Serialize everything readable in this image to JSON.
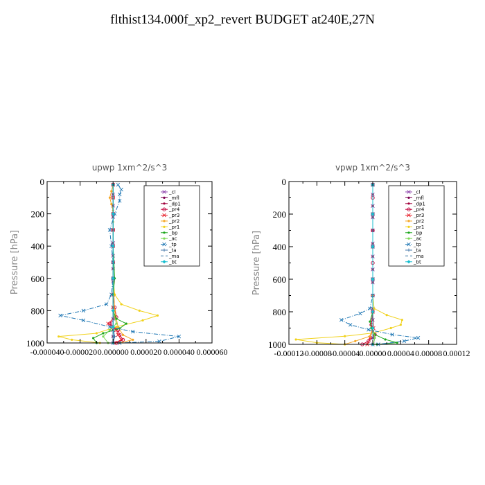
{
  "page": {
    "title": "flthist134.000f_xp2_revert  BUDGET at240E,27N"
  },
  "chart_data": [
    {
      "type": "line",
      "title": "upwp   1xm^2/s^3",
      "xlabel": "",
      "ylabel": "Pressure [hPa]",
      "ylim": [
        1000,
        0
      ],
      "xlim": [
        -4e-05,
        6e-05
      ],
      "y_ticks": [
        0,
        200,
        400,
        600,
        800,
        1000
      ],
      "y_tick_labels": [
        "0",
        "200",
        "400",
        "600",
        "800",
        "1000"
      ],
      "x_ticks": [
        -4e-05,
        -2e-05,
        0.0,
        2e-05,
        4e-05,
        6e-05
      ],
      "x_tick_labels": [
        "-0.000040",
        "-0.000020",
        "0.000000",
        "0.000020",
        "0.000040",
        "0.000060"
      ],
      "legend_position": "top-right",
      "series": [
        {
          "name": "_cl",
          "color": "#8e44ad",
          "marker": "x",
          "dash": "solid",
          "pressure": [
            20,
            80,
            150,
            220,
            300,
            380,
            460,
            540,
            620,
            700,
            780,
            850,
            920,
            960,
            1000
          ],
          "values": [
            0,
            0,
            0,
            0,
            0,
            0,
            0,
            0,
            0,
            0,
            0,
            0,
            0,
            0,
            0
          ]
        },
        {
          "name": "_mfl",
          "color": "#7a0050",
          "marker": "dot",
          "dash": "solid",
          "pressure": [
            20,
            80,
            150,
            220,
            300,
            380,
            460,
            540,
            620,
            700,
            780,
            850,
            920,
            960,
            1000
          ],
          "values": [
            0,
            0,
            0,
            0,
            0,
            0,
            0,
            0,
            0,
            0,
            0,
            0,
            0,
            0,
            0
          ]
        },
        {
          "name": "_dp1",
          "color": "#a0003c",
          "marker": "dot",
          "dash": "solid",
          "pressure": [
            20,
            80,
            150,
            220,
            300,
            380,
            460,
            540,
            620,
            700,
            780,
            850,
            920,
            960,
            1000
          ],
          "values": [
            0,
            0,
            0,
            0,
            0,
            0,
            0,
            0,
            0,
            0,
            0,
            0,
            0,
            0,
            0
          ]
        },
        {
          "name": "_pr4",
          "color": "#c0003a",
          "marker": "circle",
          "dash": "solid",
          "pressure": [
            20,
            100,
            200,
            300,
            400,
            500,
            600,
            700,
            780,
            840,
            880,
            920,
            950,
            980,
            1000
          ],
          "values": [
            0,
            0,
            0,
            0,
            0,
            0,
            0,
            0,
            1e-06,
            2e-06,
            -2e-06,
            3e-06,
            4e-06,
            6e-06,
            2e-06
          ]
        },
        {
          "name": "_pr3",
          "color": "#e8202a",
          "marker": "x",
          "dash": "solid",
          "pressure": [
            20,
            100,
            200,
            300,
            400,
            500,
            600,
            700,
            780,
            840,
            880,
            920,
            950,
            980,
            1000
          ],
          "values": [
            0,
            0,
            0,
            0,
            0,
            0,
            0,
            0,
            0,
            1e-06,
            -3e-06,
            2e-06,
            3e-06,
            5e-06,
            1e-06
          ]
        },
        {
          "name": "_pr2",
          "color": "#f5a623",
          "marker": "dot",
          "dash": "solid",
          "pressure": [
            20,
            60,
            100,
            140,
            180,
            250,
            400,
            600,
            800,
            900,
            950,
            980,
            1000
          ],
          "values": [
            0,
            -1e-06,
            -2e-06,
            -1e-06,
            0,
            0,
            0,
            0,
            1e-06,
            3e-06,
            6e-06,
            1.2e-05,
            4e-06
          ]
        },
        {
          "name": "_pr1",
          "color": "#f1d21c",
          "marker": "dot",
          "dash": "solid",
          "pressure": [
            20,
            200,
            400,
            600,
            700,
            760,
            800,
            830,
            860,
            900,
            940,
            960,
            980,
            1000
          ],
          "values": [
            0,
            0,
            0,
            0,
            1e-06,
            5e-06,
            1.6e-05,
            2.7e-05,
            1.8e-05,
            2e-06,
            -1e-05,
            -3.3e-05,
            -2.5e-05,
            -8e-06
          ]
        },
        {
          "name": "_bp",
          "color": "#1aa51a",
          "marker": "dot",
          "dash": "solid",
          "pressure": [
            20,
            200,
            400,
            600,
            700,
            800,
            850,
            880,
            910,
            940,
            970,
            1000
          ],
          "values": [
            0,
            0,
            0,
            1e-06,
            0,
            0,
            2e-06,
            8e-06,
            4e-06,
            -6e-06,
            -1.2e-05,
            -1e-05
          ]
        },
        {
          "name": "_ac",
          "color": "#7ed957",
          "marker": "dot",
          "dash": "solid",
          "pressure": [
            20,
            200,
            400,
            600,
            800,
            880,
            920,
            960,
            1000
          ],
          "values": [
            0,
            0,
            0,
            0,
            0,
            2e-06,
            -2e-06,
            -6e-06,
            -3e-06
          ]
        },
        {
          "name": "_tp",
          "color": "#1f77b4",
          "marker": "x",
          "dash": "dashdot",
          "pressure": [
            20,
            50,
            80,
            120,
            200,
            300,
            400,
            500,
            600,
            700,
            760,
            800,
            830,
            860,
            900,
            930,
            960,
            990,
            1000
          ],
          "values": [
            3e-06,
            5e-06,
            4e-06,
            4e-06,
            1e-06,
            -2e-06,
            -1e-06,
            0,
            0,
            -1e-06,
            -4e-06,
            -1.8e-05,
            -3.2e-05,
            -1.8e-05,
            -2e-06,
            1.2e-05,
            4e-05,
            2.8e-05,
            4e-06
          ]
        },
        {
          "name": "_ta",
          "color": "#4477aa",
          "marker": "plus",
          "dash": "solid",
          "pressure": [
            20,
            200,
            400,
            600,
            800,
            900,
            960,
            1000
          ],
          "values": [
            0,
            0,
            0,
            0,
            0,
            0,
            1e-06,
            0
          ]
        },
        {
          "name": "_ma",
          "color": "#2c6e9e",
          "marker": "none",
          "dash": "dashed",
          "pressure": [
            20,
            200,
            400,
            600,
            800,
            900,
            1000
          ],
          "values": [
            0,
            0,
            0,
            0,
            0,
            0,
            0
          ]
        },
        {
          "name": "_bt",
          "color": "#17becf",
          "marker": "diamond",
          "dash": "solid",
          "pressure": [
            20,
            200,
            400,
            600,
            800,
            900,
            1000
          ],
          "values": [
            0,
            0,
            0,
            0,
            0,
            0,
            0
          ]
        }
      ]
    },
    {
      "type": "line",
      "title": "vpwp   1xm^2/s^3",
      "xlabel": "",
      "ylabel": "Pressure [hPa]",
      "ylim": [
        1000,
        0
      ],
      "xlim": [
        -0.00012,
        0.00012
      ],
      "y_ticks": [
        0,
        200,
        400,
        600,
        800,
        1000
      ],
      "y_tick_labels": [
        "0",
        "200",
        "400",
        "600",
        "800",
        "1000"
      ],
      "x_ticks": [
        -0.00012,
        -8e-05,
        -4e-05,
        0.0,
        4e-05,
        8e-05,
        0.00012
      ],
      "x_tick_labels": [
        "-0.00012",
        "-0.00008",
        "-0.00004",
        "0.00000",
        "0.00004",
        "0.00008",
        "0.00012"
      ],
      "legend_position": "top-right",
      "series": [
        {
          "name": "_cl",
          "color": "#8e44ad",
          "marker": "x",
          "dash": "solid",
          "pressure": [
            20,
            80,
            150,
            220,
            300,
            380,
            460,
            540,
            620,
            700,
            780,
            850,
            920,
            960,
            1000
          ],
          "values": [
            0,
            0,
            0,
            0,
            0,
            0,
            0,
            0,
            0,
            0,
            0,
            0,
            0,
            0,
            0
          ]
        },
        {
          "name": "_mfl",
          "color": "#7a0050",
          "marker": "dot",
          "dash": "solid",
          "pressure": [
            20,
            80,
            150,
            220,
            300,
            380,
            460,
            540,
            620,
            700,
            780,
            850,
            920,
            960,
            1000
          ],
          "values": [
            0,
            0,
            0,
            0,
            0,
            0,
            0,
            0,
            0,
            0,
            0,
            0,
            0,
            0,
            0
          ]
        },
        {
          "name": "_dp1",
          "color": "#a0003c",
          "marker": "dot",
          "dash": "solid",
          "pressure": [
            20,
            80,
            150,
            220,
            300,
            380,
            460,
            540,
            620,
            700,
            780,
            850,
            920,
            960,
            1000
          ],
          "values": [
            0,
            0,
            0,
            0,
            0,
            0,
            0,
            0,
            0,
            0,
            0,
            0,
            0,
            0,
            0
          ]
        },
        {
          "name": "_pr4",
          "color": "#c0003a",
          "marker": "circle",
          "dash": "solid",
          "pressure": [
            20,
            100,
            200,
            300,
            400,
            500,
            600,
            700,
            800,
            880,
            940,
            980,
            1000
          ],
          "values": [
            0,
            0,
            0,
            0,
            0,
            0,
            0,
            0,
            0,
            -2e-06,
            3e-06,
            -6e-06,
            -1.5e-05
          ]
        },
        {
          "name": "_pr3",
          "color": "#e8202a",
          "marker": "x",
          "dash": "solid",
          "pressure": [
            20,
            200,
            400,
            600,
            800,
            900,
            960,
            1000
          ],
          "values": [
            0,
            0,
            0,
            0,
            0,
            1e-06,
            -4e-06,
            -8e-06
          ]
        },
        {
          "name": "_pr2",
          "color": "#f5a623",
          "marker": "dot",
          "dash": "solid",
          "pressure": [
            20,
            200,
            400,
            600,
            800,
            900,
            950,
            980,
            1000
          ],
          "values": [
            0,
            0,
            0,
            0,
            0,
            0,
            -4e-06,
            -2.5e-05,
            -4e-05
          ]
        },
        {
          "name": "_pr1",
          "color": "#f1d21c",
          "marker": "dot",
          "dash": "solid",
          "pressure": [
            20,
            200,
            400,
            600,
            700,
            780,
            820,
            850,
            880,
            900,
            930,
            950,
            970,
            990,
            1000
          ],
          "values": [
            0,
            0,
            0,
            0,
            0,
            2e-06,
            2e-05,
            4.2e-05,
            4e-05,
            2.6e-05,
            1e-06,
            -4e-05,
            -0.00011,
            -8e-05,
            -4e-05
          ]
        },
        {
          "name": "_bp",
          "color": "#1aa51a",
          "marker": "dot",
          "dash": "solid",
          "pressure": [
            20,
            200,
            400,
            600,
            800,
            860,
            900,
            940,
            970,
            990,
            1000
          ],
          "values": [
            0,
            0,
            0,
            0,
            0,
            -4e-06,
            -2e-06,
            3e-06,
            1.8e-05,
            3.5e-05,
            6e-06
          ]
        },
        {
          "name": "_ac",
          "color": "#7ed957",
          "marker": "dot",
          "dash": "solid",
          "pressure": [
            20,
            200,
            400,
            600,
            800,
            900,
            960,
            1000
          ],
          "values": [
            0,
            0,
            0,
            0,
            0,
            0,
            3e-06,
            1e-06
          ]
        },
        {
          "name": "_tp",
          "color": "#1f77b4",
          "marker": "x",
          "dash": "dashdot",
          "pressure": [
            20,
            200,
            400,
            600,
            700,
            780,
            810,
            850,
            880,
            910,
            940,
            960,
            980,
            1000
          ],
          "values": [
            0,
            0,
            0,
            0,
            0,
            -4e-06,
            -1.8e-05,
            -4.5e-05,
            -3.2e-05,
            -6e-06,
            2.8e-05,
            6.5e-05,
            4.5e-05,
            8e-06
          ]
        },
        {
          "name": "_ta",
          "color": "#4477aa",
          "marker": "plus",
          "dash": "solid",
          "pressure": [
            20,
            200,
            400,
            600,
            800,
            900,
            1000
          ],
          "values": [
            0,
            0,
            0,
            0,
            0,
            0,
            0
          ]
        },
        {
          "name": "_ma",
          "color": "#2c6e9e",
          "marker": "none",
          "dash": "dashed",
          "pressure": [
            20,
            200,
            400,
            600,
            800,
            900,
            1000
          ],
          "values": [
            0,
            0,
            0,
            0,
            0,
            0,
            0
          ]
        },
        {
          "name": "_bt",
          "color": "#17becf",
          "marker": "diamond",
          "dash": "solid",
          "pressure": [
            20,
            200,
            400,
            600,
            800,
            900,
            1000
          ],
          "values": [
            0,
            0,
            0,
            0,
            0,
            0,
            0
          ]
        }
      ]
    }
  ]
}
